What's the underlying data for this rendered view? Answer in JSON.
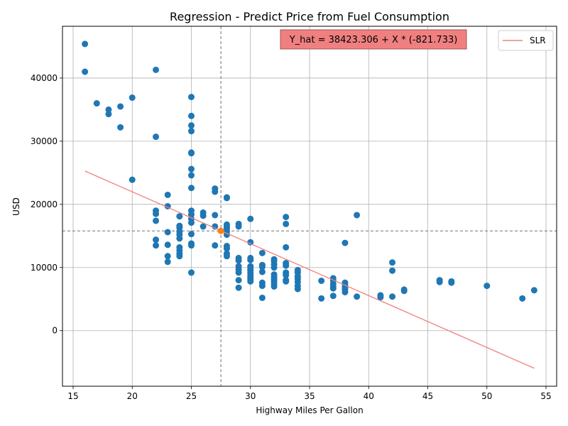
{
  "chart_data": {
    "type": "scatter",
    "title": "Regression - Predict Price from Fuel Consumption",
    "xlabel": "Highway Miles Per Gallon",
    "ylabel": "USD",
    "xlim": [
      14.1,
      55.9
    ],
    "ylim": [
      -8800,
      48200
    ],
    "xticks": [
      15,
      20,
      25,
      30,
      35,
      40,
      45,
      50,
      55
    ],
    "yticks": [
      0,
      10000,
      20000,
      30000,
      40000
    ],
    "grid": true,
    "legend": {
      "position": "top-right",
      "entries": [
        "SLR"
      ]
    },
    "equation": "Y_hat = 38423.306 + X * (-821.733)",
    "regression": {
      "intercept": 38423.306,
      "slope": -821.733,
      "x_range": [
        16,
        54
      ],
      "color": "#f08080",
      "label": "SLR"
    },
    "mean_point": {
      "x": 27.5,
      "y": 15800,
      "color": "#ff7f0e"
    },
    "mean_lines": {
      "x": 27.5,
      "y": 15800
    },
    "point_color": "#1f77b4",
    "points": [
      [
        16,
        45400
      ],
      [
        16,
        41000
      ],
      [
        17,
        36000
      ],
      [
        18,
        35000
      ],
      [
        18,
        34300
      ],
      [
        19,
        35500
      ],
      [
        19,
        32200
      ],
      [
        20,
        36900
      ],
      [
        20,
        23900
      ],
      [
        22,
        41300
      ],
      [
        22,
        30700
      ],
      [
        22,
        19000
      ],
      [
        22,
        18500
      ],
      [
        22,
        17400
      ],
      [
        22,
        14400
      ],
      [
        22,
        13500
      ],
      [
        23,
        21500
      ],
      [
        23,
        19700
      ],
      [
        23,
        15600
      ],
      [
        23,
        13600
      ],
      [
        23,
        11800
      ],
      [
        23,
        10900
      ],
      [
        24,
        18100
      ],
      [
        24,
        16600
      ],
      [
        24,
        16300
      ],
      [
        24,
        15700
      ],
      [
        24,
        15200
      ],
      [
        24,
        14600
      ],
      [
        24,
        13200
      ],
      [
        24,
        12700
      ],
      [
        24,
        12200
      ],
      [
        24,
        11800
      ],
      [
        25,
        37000
      ],
      [
        25,
        34000
      ],
      [
        25,
        32500
      ],
      [
        25,
        31600
      ],
      [
        25,
        28200
      ],
      [
        25,
        28100
      ],
      [
        25,
        25600
      ],
      [
        25,
        24600
      ],
      [
        25,
        22600
      ],
      [
        25,
        19000
      ],
      [
        25,
        18400
      ],
      [
        25,
        17700
      ],
      [
        25,
        17100
      ],
      [
        25,
        15300
      ],
      [
        25,
        13800
      ],
      [
        25,
        13500
      ],
      [
        25,
        9200
      ],
      [
        26,
        18700
      ],
      [
        26,
        18200
      ],
      [
        26,
        16500
      ],
      [
        27,
        22500
      ],
      [
        27,
        22000
      ],
      [
        27,
        18300
      ],
      [
        27,
        16500
      ],
      [
        27,
        13500
      ],
      [
        28,
        21100
      ],
      [
        28,
        21000
      ],
      [
        28,
        16800
      ],
      [
        28,
        16500
      ],
      [
        28,
        16200
      ],
      [
        28,
        15700
      ],
      [
        28,
        15200
      ],
      [
        28,
        13400
      ],
      [
        28,
        13000
      ],
      [
        28,
        12200
      ],
      [
        28,
        11800
      ],
      [
        29,
        16900
      ],
      [
        29,
        16500
      ],
      [
        29,
        11500
      ],
      [
        29,
        11100
      ],
      [
        29,
        10200
      ],
      [
        29,
        9700
      ],
      [
        29,
        9200
      ],
      [
        29,
        8000
      ],
      [
        29,
        6800
      ],
      [
        30,
        17700
      ],
      [
        30,
        14000
      ],
      [
        30,
        11500
      ],
      [
        30,
        11200
      ],
      [
        30,
        10200
      ],
      [
        30,
        9800
      ],
      [
        30,
        9500
      ],
      [
        30,
        9100
      ],
      [
        30,
        8700
      ],
      [
        30,
        8400
      ],
      [
        30,
        8100
      ],
      [
        30,
        7800
      ],
      [
        31,
        12300
      ],
      [
        31,
        10400
      ],
      [
        31,
        10100
      ],
      [
        31,
        9300
      ],
      [
        31,
        7600
      ],
      [
        31,
        7100
      ],
      [
        31,
        5200
      ],
      [
        32,
        11300
      ],
      [
        32,
        11000
      ],
      [
        32,
        10500
      ],
      [
        32,
        10000
      ],
      [
        32,
        8900
      ],
      [
        32,
        8500
      ],
      [
        32,
        8100
      ],
      [
        32,
        7800
      ],
      [
        32,
        7400
      ],
      [
        32,
        7000
      ],
      [
        33,
        18000
      ],
      [
        33,
        16900
      ],
      [
        33,
        13200
      ],
      [
        33,
        10700
      ],
      [
        33,
        10300
      ],
      [
        33,
        9200
      ],
      [
        33,
        8800
      ],
      [
        33,
        8000
      ],
      [
        33,
        7800
      ],
      [
        34,
        9600
      ],
      [
        34,
        9200
      ],
      [
        34,
        8600
      ],
      [
        34,
        8200
      ],
      [
        34,
        7700
      ],
      [
        34,
        7100
      ],
      [
        34,
        6600
      ],
      [
        36,
        7900
      ],
      [
        36,
        5100
      ],
      [
        37,
        8300
      ],
      [
        37,
        7900
      ],
      [
        37,
        7400
      ],
      [
        37,
        7000
      ],
      [
        37,
        6700
      ],
      [
        37,
        5500
      ],
      [
        38,
        13900
      ],
      [
        38,
        7600
      ],
      [
        38,
        7200
      ],
      [
        38,
        6800
      ],
      [
        38,
        6500
      ],
      [
        38,
        6100
      ],
      [
        39,
        18300
      ],
      [
        39,
        5400
      ],
      [
        41,
        5600
      ],
      [
        41,
        5300
      ],
      [
        42,
        10800
      ],
      [
        42,
        9500
      ],
      [
        42,
        5400
      ],
      [
        43,
        6500
      ],
      [
        43,
        6300
      ],
      [
        46,
        8000
      ],
      [
        46,
        7700
      ],
      [
        47,
        7800
      ],
      [
        47,
        7600
      ],
      [
        50,
        7100
      ],
      [
        53,
        5100
      ],
      [
        54,
        6400
      ]
    ]
  }
}
